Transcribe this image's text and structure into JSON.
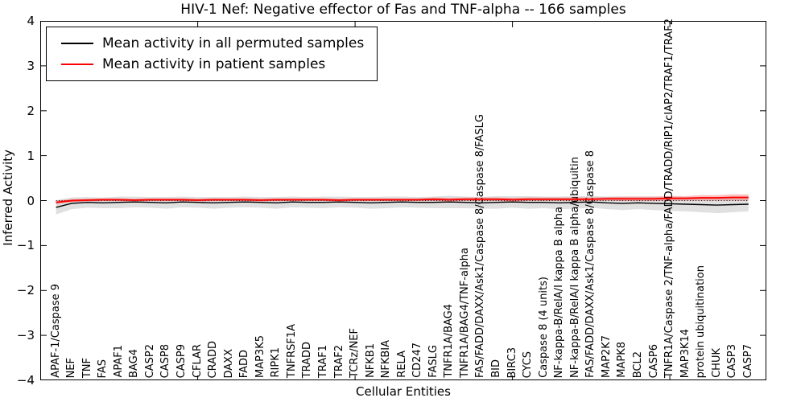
{
  "title": "HIV-1 Nef: Negative effector of Fas and TNF-alpha -- 166 samples",
  "legend": {
    "items": [
      {
        "label": "Mean activity in all permuted samples",
        "color": "#000000"
      },
      {
        "label": "Mean activity in patient samples",
        "color": "#ff0000"
      }
    ]
  },
  "colors": {
    "permuted_line": "#000000",
    "patient_line": "#ff0000",
    "permuted_band": "rgba(0,0,0,0.12)",
    "patient_band": "rgba(255,0,0,0.25)",
    "axis": "#000000",
    "background": "#ffffff"
  },
  "chart_data": {
    "type": "line",
    "title": "HIV-1 Nef: Negative effector of Fas and TNF-alpha -- 166 samples",
    "xlabel": "Cellular Entities",
    "ylabel": "Inferred Activity",
    "ylim": [
      -4,
      4
    ],
    "yticks": [
      4,
      3,
      2,
      1,
      0,
      -1,
      -2,
      -3,
      -4
    ],
    "grid": false,
    "zero_reference_line": "dotted",
    "legend_position": "upper left",
    "categories": [
      "APAF-1/Caspase 9",
      "NEF",
      "TNF",
      "FAS",
      "APAF1",
      "BAG4",
      "CASP2",
      "CASP8",
      "CASP9",
      "CFLAR",
      "CRADD",
      "DAXX",
      "FADD",
      "MAP3K5",
      "RIPK1",
      "TNFRSF1A",
      "TRADD",
      "TRAF1",
      "TRAF2",
      "TCRz/NEF",
      "NFKB1",
      "NFKBIA",
      "RELA",
      "CD247",
      "FASLG",
      "TNFR1A/BAG4",
      "TNFR1A/BAG4/TNF-alpha",
      "FAS/FADD/DAXX/Ask1/Caspase 8/Caspase 8/FASLG",
      "BID",
      "BIRC3",
      "CYCS",
      "Caspase 8 (4 units)",
      "NF-kappa-B/RelA/I kappa B alpha",
      "NF-kappa-B/RelA/I kappa B alpha/ubiquitin",
      "FAS/FADD/DAXX/Ask1/Caspase 8/Caspase 8",
      "MAP2K7",
      "MAPK8",
      "BCL2",
      "CASP6",
      "TNFR1A/Caspase 2/TNF-alpha/FADD/TRADD/RIP1/cIAP2/TRAF1/TRAF2",
      "MAP3K14",
      "protein ubiquitination",
      "CHUK",
      "CASP3",
      "CASP7"
    ],
    "series": [
      {
        "name": "Mean activity in all permuted samples",
        "color": "#000000",
        "values": [
          -0.15,
          -0.06,
          -0.04,
          -0.05,
          -0.04,
          -0.03,
          -0.04,
          -0.05,
          -0.03,
          -0.04,
          -0.05,
          -0.04,
          -0.03,
          -0.04,
          -0.05,
          -0.03,
          -0.04,
          -0.04,
          -0.03,
          -0.04,
          -0.05,
          -0.04,
          -0.03,
          -0.04,
          -0.04,
          -0.03,
          -0.04,
          -0.05,
          -0.04,
          -0.03,
          -0.04,
          -0.04,
          -0.05,
          -0.04,
          -0.03,
          -0.05,
          -0.06,
          -0.05,
          -0.06,
          -0.07,
          -0.08,
          -0.09,
          -0.1,
          -0.09,
          -0.08
        ],
        "band_halfwidth": [
          0.16,
          0.13,
          0.12,
          0.12,
          0.13,
          0.12,
          0.12,
          0.13,
          0.12,
          0.12,
          0.13,
          0.12,
          0.12,
          0.12,
          0.13,
          0.12,
          0.12,
          0.13,
          0.12,
          0.12,
          0.13,
          0.13,
          0.12,
          0.12,
          0.13,
          0.14,
          0.13,
          0.13,
          0.14,
          0.13,
          0.14,
          0.13,
          0.14,
          0.14,
          0.13,
          0.14,
          0.15,
          0.14,
          0.15,
          0.16,
          0.16,
          0.17,
          0.18,
          0.17,
          0.16
        ],
        "band_color": "rgba(0,0,0,0.12)"
      },
      {
        "name": "Mean activity in patient samples",
        "color": "#ff0000",
        "values": [
          -0.04,
          0.0,
          0.01,
          0.02,
          0.02,
          0.01,
          0.02,
          0.02,
          0.02,
          0.01,
          0.02,
          0.02,
          0.02,
          0.01,
          0.02,
          0.02,
          0.02,
          0.02,
          0.01,
          0.02,
          0.02,
          0.02,
          0.02,
          0.02,
          0.03,
          0.02,
          0.03,
          0.03,
          0.03,
          0.02,
          0.03,
          0.03,
          0.03,
          0.03,
          0.03,
          0.04,
          0.04,
          0.04,
          0.04,
          0.05,
          0.05,
          0.06,
          0.06,
          0.07,
          0.07
        ],
        "band_halfwidth": [
          0.04,
          0.03,
          0.03,
          0.03,
          0.03,
          0.03,
          0.03,
          0.03,
          0.03,
          0.03,
          0.03,
          0.03,
          0.03,
          0.03,
          0.03,
          0.03,
          0.03,
          0.03,
          0.03,
          0.03,
          0.03,
          0.03,
          0.03,
          0.03,
          0.04,
          0.04,
          0.04,
          0.04,
          0.04,
          0.04,
          0.04,
          0.04,
          0.04,
          0.04,
          0.04,
          0.04,
          0.05,
          0.05,
          0.05,
          0.05,
          0.05,
          0.06,
          0.06,
          0.07,
          0.07
        ],
        "band_color": "rgba(255,0,0,0.25)"
      }
    ]
  }
}
